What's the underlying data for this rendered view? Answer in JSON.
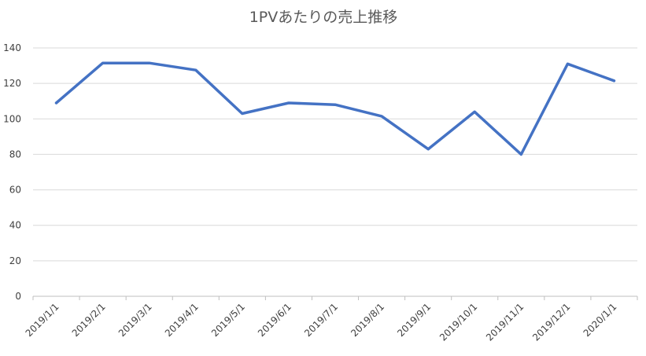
{
  "chart_data": {
    "type": "line",
    "title": "1PVあたりの売上推移",
    "xlabel": "",
    "ylabel": "",
    "categories": [
      "2019/1/1",
      "2019/2/1",
      "2019/3/1",
      "2019/4/1",
      "2019/5/1",
      "2019/6/1",
      "2019/7/1",
      "2019/8/1",
      "2019/9/1",
      "2019/10/1",
      "2019/11/1",
      "2019/12/1",
      "2020/1/1"
    ],
    "series": [
      {
        "values": [
          109,
          131.5,
          131.5,
          127.5,
          103,
          109,
          108,
          101.5,
          83,
          104,
          80,
          131,
          121.5
        ]
      }
    ],
    "ylim": [
      0,
      140
    ],
    "yticks": [
      0,
      20,
      40,
      60,
      80,
      100,
      120,
      140
    ],
    "grid": true,
    "legend": "none",
    "colors": {
      "series": "#4472c4"
    }
  }
}
